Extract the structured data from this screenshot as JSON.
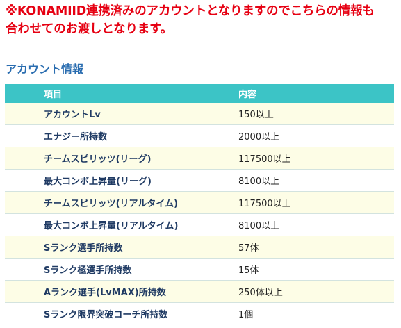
{
  "notice": {
    "line1": "※KONAMIID連携済みのアカウントとなりますのでこちらの情報も",
    "line2": "合わせてのお渡しとなります。"
  },
  "section": {
    "title": "アカウント情報"
  },
  "table": {
    "headers": [
      "項目",
      "内容"
    ],
    "rows": [
      {
        "item": "アカウントLv",
        "value": "150以上"
      },
      {
        "item": "エナジー所持数",
        "value": "2000以上"
      },
      {
        "item": "チームスピリッツ(リーグ)",
        "value": "117500以上"
      },
      {
        "item": "最大コンボ上昇量(リーグ)",
        "value": "8100以上"
      },
      {
        "item": "チームスピリッツ(リアルタイム)",
        "value": "117500以上"
      },
      {
        "item": "最大コンボ上昇量(リアルタイム)",
        "value": "8100以上"
      },
      {
        "item": "Sランク選手所持数",
        "value": "57体"
      },
      {
        "item": "Sランク極選手所持数",
        "value": "15体"
      },
      {
        "item": "Aランク選手(LvMAX)所持数",
        "value": "250体以上"
      },
      {
        "item": "Sランク限界突破コーチ所持数",
        "value": "1個"
      }
    ]
  },
  "colors": {
    "notice": "#e60012",
    "title": "#2a6db0",
    "header_bg": "#3cc4c6",
    "row_odd_bg": "#fdfde6",
    "item_text": "#1f3a63"
  }
}
